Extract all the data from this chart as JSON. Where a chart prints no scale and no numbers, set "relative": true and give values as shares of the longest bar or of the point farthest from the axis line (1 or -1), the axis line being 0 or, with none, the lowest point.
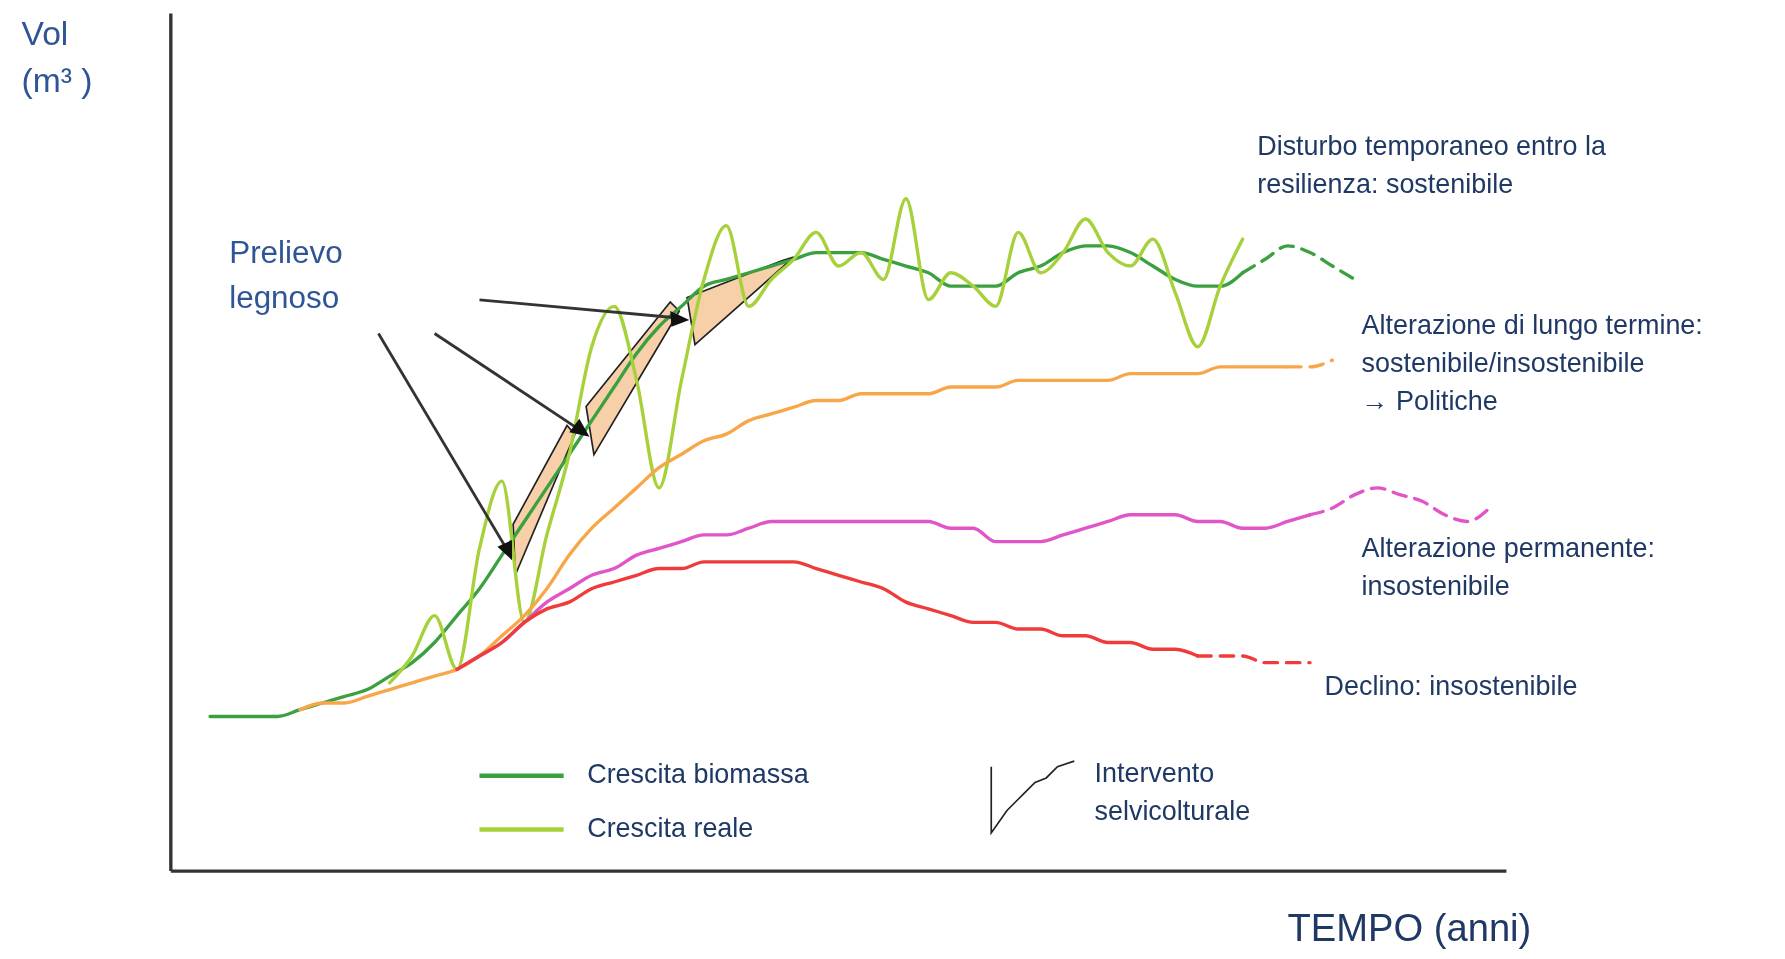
{
  "chart_data": {
    "type": "line",
    "relative": true,
    "xlabel": "TEMPO (anni)",
    "ylabel": "Vol\n(m³ )",
    "legend": "bottom",
    "categories": [
      null,
      null,
      null,
      null,
      null,
      null,
      null,
      null,
      null,
      null,
      null,
      null,
      null,
      null,
      null,
      null,
      null,
      null,
      null,
      null,
      null,
      null,
      null,
      null,
      null,
      null,
      null,
      null,
      null,
      null,
      null,
      null,
      null,
      null,
      null,
      null,
      null,
      null,
      null,
      null,
      null,
      null,
      null,
      null,
      null,
      null,
      null,
      null,
      null,
      null,
      null,
      null,
      null,
      null,
      null,
      null,
      null,
      null
    ],
    "series": [
      {
        "name": "Crescita biomassa",
        "color": "#3aa040",
        "line_style": "solid",
        "values": [
          0.23,
          0.23,
          0.23,
          0.23,
          0.24,
          0.25,
          0.26,
          0.27,
          0.29,
          0.31,
          0.34,
          0.38,
          0.42,
          0.47,
          0.52,
          0.57,
          0.62,
          0.67,
          0.72,
          0.77,
          0.81,
          0.84,
          0.87,
          0.88,
          0.89,
          0.9,
          0.91,
          0.92,
          0.92,
          0.92,
          0.91,
          0.9,
          0.89,
          0.87,
          0.87,
          0.87,
          0.89,
          0.9,
          0.92,
          0.93,
          0.93,
          0.92,
          0.9,
          0.88,
          0.87,
          0.87,
          0.89,
          null,
          null,
          null,
          null,
          null,
          null,
          null,
          null,
          null,
          null,
          null
        ]
      },
      {
        "color": "#3aa040",
        "line_style": "dashed",
        "values": [
          null,
          null,
          null,
          null,
          null,
          null,
          null,
          null,
          null,
          null,
          null,
          null,
          null,
          null,
          null,
          null,
          null,
          null,
          null,
          null,
          null,
          null,
          null,
          null,
          null,
          null,
          null,
          null,
          null,
          null,
          null,
          null,
          null,
          null,
          null,
          null,
          null,
          null,
          null,
          null,
          null,
          null,
          null,
          null,
          null,
          null,
          0.89,
          0.91,
          0.93,
          0.92,
          0.9,
          0.88,
          null,
          null,
          null,
          null,
          null,
          null
        ]
      },
      {
        "name": "Crescita reale",
        "color": "#a6d13a",
        "line_style": "solid",
        "values": [
          null,
          null,
          null,
          null,
          null,
          null,
          null,
          null,
          0.28,
          0.32,
          0.38,
          0.3,
          0.48,
          0.58,
          0.37,
          0.5,
          0.62,
          0.78,
          0.84,
          0.73,
          0.57,
          0.73,
          0.88,
          0.96,
          0.84,
          0.88,
          0.91,
          0.95,
          0.9,
          0.92,
          0.88,
          1.0,
          0.85,
          0.89,
          0.87,
          0.84,
          0.95,
          0.89,
          0.92,
          0.97,
          0.92,
          0.9,
          0.94,
          0.86,
          0.78,
          0.87,
          0.94,
          null,
          null,
          null,
          null,
          null,
          null,
          null,
          null,
          null,
          null,
          null
        ]
      },
      {
        "color": "#f7a74a",
        "line_style": "solid",
        "values": [
          null,
          null,
          null,
          null,
          0.24,
          0.25,
          0.25,
          0.26,
          0.27,
          0.28,
          0.29,
          0.3,
          0.32,
          0.35,
          0.38,
          0.42,
          0.47,
          0.51,
          0.54,
          0.57,
          0.6,
          0.62,
          0.64,
          0.65,
          0.67,
          0.68,
          0.69,
          0.7,
          0.7,
          0.71,
          0.71,
          0.71,
          0.71,
          0.72,
          0.72,
          0.72,
          0.73,
          0.73,
          0.73,
          0.73,
          0.73,
          0.74,
          0.74,
          0.74,
          0.74,
          0.75,
          0.75,
          0.75,
          0.75,
          null,
          null,
          null,
          null,
          null,
          null,
          null,
          null,
          null
        ]
      },
      {
        "color": "#f7a74a",
        "line_style": "dashed",
        "values": [
          null,
          null,
          null,
          null,
          null,
          null,
          null,
          null,
          null,
          null,
          null,
          null,
          null,
          null,
          null,
          null,
          null,
          null,
          null,
          null,
          null,
          null,
          null,
          null,
          null,
          null,
          null,
          null,
          null,
          null,
          null,
          null,
          null,
          null,
          null,
          null,
          null,
          null,
          null,
          null,
          null,
          null,
          null,
          null,
          null,
          null,
          null,
          null,
          0.75,
          0.75,
          0.76,
          null,
          null,
          null,
          null,
          null,
          null,
          null
        ]
      },
      {
        "color": "#e055c8",
        "line_style": "solid",
        "values": [
          null,
          null,
          null,
          null,
          null,
          null,
          null,
          null,
          null,
          null,
          null,
          0.3,
          0.32,
          0.34,
          0.37,
          0.4,
          0.42,
          0.44,
          0.45,
          0.47,
          0.48,
          0.49,
          0.5,
          0.5,
          0.51,
          0.52,
          0.52,
          0.52,
          0.52,
          0.52,
          0.52,
          0.52,
          0.52,
          0.51,
          0.51,
          0.49,
          0.49,
          0.49,
          0.5,
          0.51,
          0.52,
          0.53,
          0.53,
          0.53,
          0.52,
          0.52,
          0.51,
          0.51,
          0.52,
          0.53,
          null,
          null,
          null,
          null,
          null,
          null,
          null,
          null
        ]
      },
      {
        "color": "#e055c8",
        "line_style": "dashed",
        "values": [
          null,
          null,
          null,
          null,
          null,
          null,
          null,
          null,
          null,
          null,
          null,
          null,
          null,
          null,
          null,
          null,
          null,
          null,
          null,
          null,
          null,
          null,
          null,
          null,
          null,
          null,
          null,
          null,
          null,
          null,
          null,
          null,
          null,
          null,
          null,
          null,
          null,
          null,
          null,
          null,
          null,
          null,
          null,
          null,
          null,
          null,
          null,
          null,
          null,
          0.53,
          0.54,
          0.56,
          0.57,
          0.56,
          0.55,
          0.53,
          0.52,
          0.54
        ]
      },
      {
        "color": "#ef3b3b",
        "line_style": "solid",
        "values": [
          null,
          null,
          null,
          null,
          null,
          null,
          null,
          null,
          null,
          null,
          null,
          0.3,
          0.32,
          0.34,
          0.37,
          0.39,
          0.4,
          0.42,
          0.43,
          0.44,
          0.45,
          0.45,
          0.46,
          0.46,
          0.46,
          0.46,
          0.46,
          0.45,
          0.44,
          0.43,
          0.42,
          0.4,
          0.39,
          0.38,
          0.37,
          0.37,
          0.36,
          0.36,
          0.35,
          0.35,
          0.34,
          0.34,
          0.33,
          0.33,
          0.32,
          null,
          null,
          null,
          null,
          null,
          null,
          null,
          null,
          null,
          null,
          null,
          null,
          null
        ]
      },
      {
        "color": "#ef3b3b",
        "line_style": "dashed",
        "values": [
          null,
          null,
          null,
          null,
          null,
          null,
          null,
          null,
          null,
          null,
          null,
          null,
          null,
          null,
          null,
          null,
          null,
          null,
          null,
          null,
          null,
          null,
          null,
          null,
          null,
          null,
          null,
          null,
          null,
          null,
          null,
          null,
          null,
          null,
          null,
          null,
          null,
          null,
          null,
          null,
          null,
          null,
          null,
          null,
          0.32,
          0.32,
          0.32,
          0.31,
          0.31,
          0.31,
          null,
          null,
          null,
          null,
          null,
          null,
          null,
          null
        ]
      }
    ],
    "annotations": [
      "Disturbo temporaneo entro la\nresilienza: sostenibile",
      "Alterazione di lungo termine:\nsostenibile/insostenibile\n→ Politiche",
      "Alterazione permanente:\ninsostenibile",
      "Declino: insostenibile",
      "Prelievo\nlegnoso",
      "Intervento\nselvicolturale"
    ]
  }
}
